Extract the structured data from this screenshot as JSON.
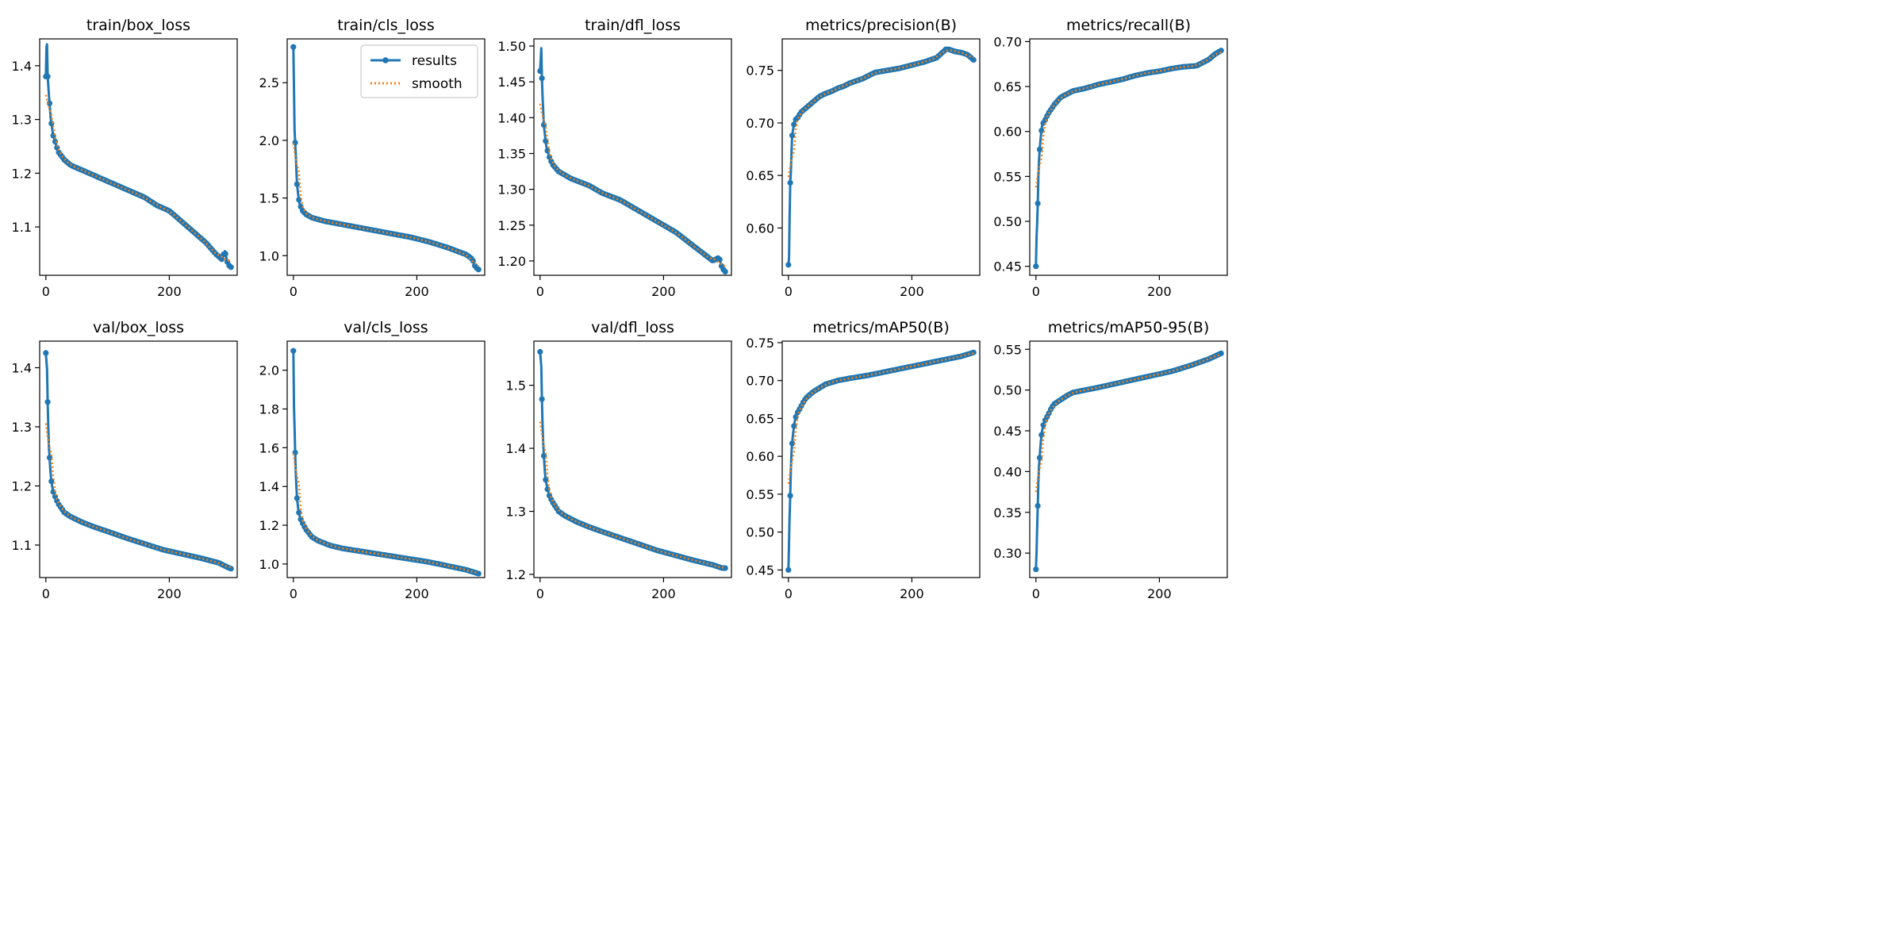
{
  "colors": {
    "results": "#1f77b4",
    "smooth": "#ff7f0e",
    "axes": "#000000"
  },
  "legend": {
    "entries": [
      "results",
      "smooth"
    ],
    "placement": "top-right",
    "panel": "train/cls_loss"
  },
  "chart_data": [
    {
      "type": "line",
      "title": "train/box_loss",
      "xlim": [
        -10,
        310
      ],
      "ylim": [
        1.01,
        1.45
      ],
      "xticks": [
        0,
        200
      ],
      "yticks": [
        1.1,
        1.2,
        1.3,
        1.4
      ],
      "ytick_labels": [
        "1.1",
        "1.2",
        "1.3",
        "1.4"
      ],
      "x": [
        0,
        1,
        2,
        3,
        5,
        8,
        12,
        20,
        30,
        40,
        60,
        80,
        100,
        120,
        140,
        160,
        180,
        200,
        220,
        240,
        260,
        275,
        285,
        290,
        295,
        300
      ],
      "series": [
        {
          "name": "results",
          "values": [
            1.38,
            1.435,
            1.44,
            1.38,
            1.345,
            1.3,
            1.27,
            1.24,
            1.225,
            1.215,
            1.205,
            1.195,
            1.185,
            1.175,
            1.165,
            1.155,
            1.14,
            1.13,
            1.11,
            1.09,
            1.07,
            1.05,
            1.04,
            1.055,
            1.03,
            1.025
          ]
        }
      ]
    },
    {
      "type": "line",
      "title": "train/cls_loss",
      "xlim": [
        -10,
        310
      ],
      "ylim": [
        0.83,
        2.88
      ],
      "xticks": [
        0,
        200
      ],
      "yticks": [
        1.0,
        1.5,
        2.0,
        2.5
      ],
      "ytick_labels": [
        "1.0",
        "1.5",
        "2.0",
        "2.5"
      ],
      "x": [
        0,
        2,
        3,
        4,
        5,
        6,
        8,
        10,
        15,
        20,
        30,
        50,
        80,
        100,
        130,
        160,
        190,
        220,
        250,
        280,
        290,
        295,
        300
      ],
      "series": [
        {
          "name": "results",
          "values": [
            2.81,
            2.09,
            1.98,
            1.87,
            1.72,
            1.62,
            1.52,
            1.45,
            1.39,
            1.36,
            1.33,
            1.3,
            1.27,
            1.25,
            1.22,
            1.19,
            1.16,
            1.12,
            1.07,
            1.01,
            0.97,
            0.9,
            0.88
          ]
        }
      ]
    },
    {
      "type": "line",
      "title": "train/dfl_loss",
      "xlim": [
        -10,
        310
      ],
      "ylim": [
        1.18,
        1.51
      ],
      "xticks": [
        0,
        200
      ],
      "yticks": [
        1.2,
        1.25,
        1.3,
        1.35,
        1.4,
        1.45,
        1.5
      ],
      "ytick_labels": [
        "1.20",
        "1.25",
        "1.30",
        "1.35",
        "1.40",
        "1.45",
        "1.50"
      ],
      "x": [
        0,
        2,
        3,
        4,
        5,
        6,
        8,
        10,
        15,
        20,
        30,
        50,
        80,
        100,
        130,
        160,
        190,
        220,
        250,
        280,
        290,
        295,
        300
      ],
      "series": [
        {
          "name": "results",
          "values": [
            1.465,
            1.497,
            1.455,
            1.43,
            1.41,
            1.39,
            1.375,
            1.36,
            1.345,
            1.335,
            1.325,
            1.315,
            1.305,
            1.295,
            1.285,
            1.27,
            1.255,
            1.24,
            1.22,
            1.2,
            1.205,
            1.19,
            1.185
          ]
        }
      ]
    },
    {
      "type": "line",
      "title": "metrics/precision(B)",
      "xlim": [
        -10,
        310
      ],
      "ylim": [
        0.555,
        0.78
      ],
      "xticks": [
        0,
        200
      ],
      "yticks": [
        0.6,
        0.65,
        0.7,
        0.75
      ],
      "ytick_labels": [
        "0.60",
        "0.65",
        "0.70",
        "0.75"
      ],
      "x": [
        0,
        1,
        2,
        3,
        4,
        5,
        6,
        8,
        10,
        15,
        20,
        30,
        40,
        50,
        60,
        70,
        80,
        90,
        100,
        120,
        140,
        160,
        180,
        200,
        220,
        240,
        255,
        260,
        270,
        280,
        290,
        300
      ],
      "series": [
        {
          "name": "results",
          "values": [
            0.565,
            0.572,
            0.61,
            0.643,
            0.653,
            0.672,
            0.688,
            0.695,
            0.702,
            0.705,
            0.71,
            0.715,
            0.72,
            0.725,
            0.728,
            0.73,
            0.733,
            0.735,
            0.738,
            0.742,
            0.748,
            0.75,
            0.752,
            0.755,
            0.758,
            0.762,
            0.77,
            0.77,
            0.768,
            0.767,
            0.765,
            0.76
          ]
        }
      ]
    },
    {
      "type": "line",
      "title": "metrics/recall(B)",
      "xlim": [
        -10,
        310
      ],
      "ylim": [
        0.44,
        0.703
      ],
      "xticks": [
        0,
        200
      ],
      "yticks": [
        0.45,
        0.5,
        0.55,
        0.6,
        0.65,
        0.7
      ],
      "ytick_labels": [
        "0.45",
        "0.50",
        "0.55",
        "0.60",
        "0.65",
        "0.70"
      ],
      "x": [
        0,
        1,
        2,
        3,
        4,
        5,
        6,
        8,
        10,
        15,
        20,
        30,
        40,
        60,
        80,
        100,
        120,
        140,
        160,
        180,
        200,
        220,
        240,
        260,
        280,
        290,
        300
      ],
      "series": [
        {
          "name": "results",
          "values": [
            0.45,
            0.483,
            0.497,
            0.52,
            0.55,
            0.568,
            0.58,
            0.595,
            0.607,
            0.613,
            0.62,
            0.63,
            0.638,
            0.645,
            0.648,
            0.652,
            0.655,
            0.658,
            0.662,
            0.665,
            0.667,
            0.67,
            0.672,
            0.673,
            0.68,
            0.686,
            0.69
          ]
        }
      ]
    },
    {
      "type": "line",
      "title": "val/box_loss",
      "xlim": [
        -10,
        310
      ],
      "ylim": [
        1.045,
        1.445
      ],
      "xticks": [
        0,
        200
      ],
      "yticks": [
        1.1,
        1.2,
        1.3,
        1.4
      ],
      "ytick_labels": [
        "1.1",
        "1.2",
        "1.3",
        "1.4"
      ],
      "x": [
        0,
        1,
        2,
        3,
        4,
        5,
        6,
        7,
        8,
        9,
        10,
        12,
        15,
        20,
        30,
        40,
        60,
        80,
        100,
        130,
        160,
        190,
        220,
        250,
        280,
        295,
        300
      ],
      "series": [
        {
          "name": "results",
          "values": [
            1.425,
            1.41,
            1.398,
            1.342,
            1.298,
            1.265,
            1.248,
            1.232,
            1.218,
            1.208,
            1.2,
            1.19,
            1.182,
            1.17,
            1.155,
            1.148,
            1.138,
            1.13,
            1.123,
            1.112,
            1.102,
            1.092,
            1.085,
            1.078,
            1.07,
            1.062,
            1.06
          ]
        }
      ]
    },
    {
      "type": "line",
      "title": "val/cls_loss",
      "xlim": [
        -10,
        310
      ],
      "ylim": [
        0.93,
        2.15
      ],
      "xticks": [
        0,
        200
      ],
      "yticks": [
        1.0,
        1.2,
        1.4,
        1.6,
        1.8,
        2.0
      ],
      "ytick_labels": [
        "1.0",
        "1.2",
        "1.4",
        "1.6",
        "1.8",
        "2.0"
      ],
      "x": [
        0,
        1,
        2,
        3,
        4,
        5,
        6,
        7,
        8,
        9,
        10,
        12,
        15,
        20,
        30,
        40,
        60,
        80,
        100,
        130,
        160,
        190,
        220,
        250,
        280,
        295,
        300
      ],
      "series": [
        {
          "name": "results",
          "values": [
            2.1,
            1.805,
            1.705,
            1.575,
            1.46,
            1.39,
            1.34,
            1.31,
            1.28,
            1.265,
            1.25,
            1.23,
            1.21,
            1.18,
            1.14,
            1.12,
            1.095,
            1.08,
            1.07,
            1.055,
            1.04,
            1.025,
            1.01,
            0.99,
            0.97,
            0.955,
            0.95
          ]
        }
      ]
    },
    {
      "type": "line",
      "title": "val/dfl_loss",
      "xlim": [
        -10,
        310
      ],
      "ylim": [
        1.195,
        1.57
      ],
      "xticks": [
        0,
        200
      ],
      "yticks": [
        1.2,
        1.3,
        1.4,
        1.5
      ],
      "ytick_labels": [
        "1.2",
        "1.3",
        "1.4",
        "1.5"
      ],
      "x": [
        0,
        1,
        2,
        3,
        4,
        5,
        6,
        7,
        8,
        9,
        10,
        12,
        15,
        20,
        30,
        40,
        60,
        80,
        100,
        130,
        160,
        190,
        220,
        250,
        280,
        295,
        300
      ],
      "series": [
        {
          "name": "results",
          "values": [
            1.553,
            1.541,
            1.53,
            1.478,
            1.438,
            1.41,
            1.388,
            1.375,
            1.36,
            1.35,
            1.345,
            1.335,
            1.325,
            1.315,
            1.3,
            1.293,
            1.283,
            1.275,
            1.268,
            1.258,
            1.248,
            1.238,
            1.23,
            1.222,
            1.215,
            1.21,
            1.21
          ]
        }
      ]
    },
    {
      "type": "line",
      "title": "metrics/mAP50(B)",
      "xlim": [
        -10,
        310
      ],
      "ylim": [
        0.44,
        0.752
      ],
      "xticks": [
        0,
        200
      ],
      "yticks": [
        0.45,
        0.5,
        0.55,
        0.6,
        0.65,
        0.7,
        0.75
      ],
      "ytick_labels": [
        "0.45",
        "0.50",
        "0.55",
        "0.60",
        "0.65",
        "0.70",
        "0.75"
      ],
      "x": [
        0,
        1,
        2,
        3,
        4,
        5,
        6,
        7,
        8,
        9,
        10,
        12,
        15,
        20,
        25,
        30,
        40,
        50,
        60,
        80,
        100,
        130,
        160,
        190,
        220,
        250,
        280,
        300
      ],
      "series": [
        {
          "name": "results",
          "values": [
            0.45,
            0.487,
            0.521,
            0.548,
            0.583,
            0.605,
            0.617,
            0.625,
            0.633,
            0.64,
            0.645,
            0.652,
            0.658,
            0.665,
            0.673,
            0.678,
            0.685,
            0.69,
            0.695,
            0.7,
            0.703,
            0.707,
            0.712,
            0.717,
            0.722,
            0.727,
            0.732,
            0.737
          ]
        }
      ]
    },
    {
      "type": "line",
      "title": "metrics/mAP50-95(B)",
      "xlim": [
        -10,
        310
      ],
      "ylim": [
        0.27,
        0.56
      ],
      "xticks": [
        0,
        200
      ],
      "yticks": [
        0.3,
        0.35,
        0.4,
        0.45,
        0.5,
        0.55
      ],
      "ytick_labels": [
        "0.30",
        "0.35",
        "0.40",
        "0.45",
        "0.50",
        "0.55"
      ],
      "x": [
        0,
        1,
        2,
        3,
        4,
        5,
        6,
        7,
        8,
        9,
        10,
        12,
        15,
        20,
        25,
        30,
        40,
        50,
        60,
        80,
        100,
        130,
        160,
        190,
        220,
        250,
        280,
        300
      ],
      "series": [
        {
          "name": "results",
          "values": [
            0.28,
            0.302,
            0.33,
            0.358,
            0.388,
            0.407,
            0.417,
            0.428,
            0.437,
            0.445,
            0.45,
            0.457,
            0.463,
            0.47,
            0.478,
            0.483,
            0.488,
            0.493,
            0.497,
            0.5,
            0.503,
            0.508,
            0.513,
            0.518,
            0.523,
            0.53,
            0.538,
            0.545
          ]
        }
      ]
    }
  ]
}
